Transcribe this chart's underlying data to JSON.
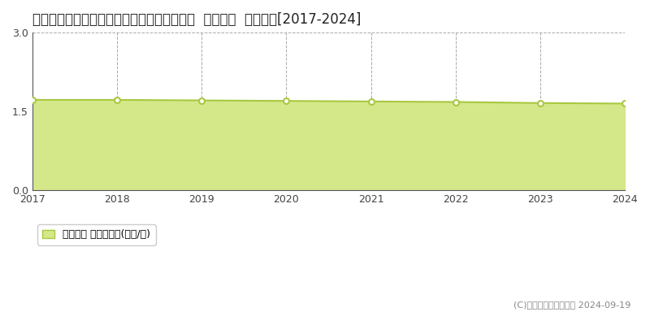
{
  "title": "鳥取県西伯郡伯耆町大原字ウトロ５７９番１  基準地価  地価推移[2017-2024]",
  "years": [
    2017,
    2018,
    2019,
    2020,
    2021,
    2022,
    2023,
    2024
  ],
  "values": [
    1.72,
    1.72,
    1.71,
    1.7,
    1.69,
    1.68,
    1.66,
    1.65
  ],
  "ylim": [
    0,
    3
  ],
  "yticks": [
    0,
    1.5,
    3
  ],
  "line_color": "#a8c840",
  "fill_color": "#d4e88a",
  "marker_color": "#ffffff",
  "marker_edge_color": "#a8c840",
  "grid_color": "#aaaaaa",
  "background_color": "#ffffff",
  "title_fontsize": 12,
  "legend_label": "基準地価 平均坪単価(万円/坪)",
  "copyright_text": "(C)土地価格ドットコム 2024-09-19",
  "tick_fontsize": 9
}
